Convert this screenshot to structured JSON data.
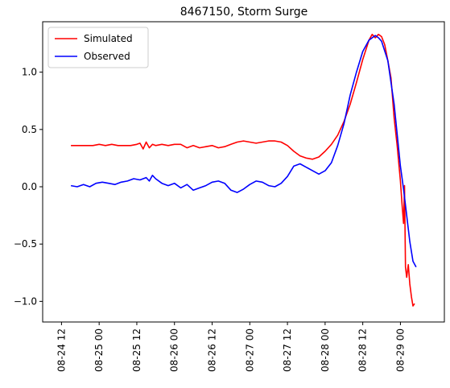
{
  "chart_data": {
    "type": "line",
    "title": "8467150, Storm Surge",
    "xlabel": "",
    "ylabel": "",
    "x_unit": "hours",
    "xlim_hours": [
      -6,
      122
    ],
    "ylim": [
      -1.18,
      1.44
    ],
    "grid": false,
    "legend_position": "top-left",
    "x_ticks": [
      {
        "label": "08-24 12",
        "hour": 0
      },
      {
        "label": "08-25 00",
        "hour": 12
      },
      {
        "label": "08-25 12",
        "hour": 24
      },
      {
        "label": "08-26 00",
        "hour": 36
      },
      {
        "label": "08-26 12",
        "hour": 48
      },
      {
        "label": "08-27 00",
        "hour": 60
      },
      {
        "label": "08-27 12",
        "hour": 72
      },
      {
        "label": "08-28 00",
        "hour": 84
      },
      {
        "label": "08-28 12",
        "hour": 96
      },
      {
        "label": "08-29 00",
        "hour": 108
      }
    ],
    "y_ticks": [
      {
        "label": "1.0",
        "value": 1.0
      },
      {
        "label": "0.5",
        "value": 0.5
      },
      {
        "label": "0.0",
        "value": 0.0
      },
      {
        "label": "−0.5",
        "value": -0.5
      },
      {
        "label": "−1.0",
        "value": -1.0
      }
    ],
    "series": [
      {
        "name": "Simulated",
        "color": "#ff0000",
        "points": [
          [
            3,
            0.36
          ],
          [
            6,
            0.36
          ],
          [
            9,
            0.36
          ],
          [
            10,
            0.36
          ],
          [
            12,
            0.37
          ],
          [
            14,
            0.36
          ],
          [
            16,
            0.37
          ],
          [
            18,
            0.36
          ],
          [
            20,
            0.36
          ],
          [
            22,
            0.36
          ],
          [
            24,
            0.37
          ],
          [
            25,
            0.38
          ],
          [
            26,
            0.33
          ],
          [
            27,
            0.39
          ],
          [
            28,
            0.34
          ],
          [
            29,
            0.37
          ],
          [
            30,
            0.36
          ],
          [
            32,
            0.37
          ],
          [
            34,
            0.36
          ],
          [
            36,
            0.37
          ],
          [
            38,
            0.37
          ],
          [
            40,
            0.34
          ],
          [
            42,
            0.36
          ],
          [
            44,
            0.34
          ],
          [
            46,
            0.35
          ],
          [
            48,
            0.36
          ],
          [
            50,
            0.34
          ],
          [
            52,
            0.35
          ],
          [
            54,
            0.37
          ],
          [
            56,
            0.39
          ],
          [
            58,
            0.4
          ],
          [
            60,
            0.39
          ],
          [
            62,
            0.38
          ],
          [
            64,
            0.39
          ],
          [
            66,
            0.4
          ],
          [
            68,
            0.4
          ],
          [
            70,
            0.39
          ],
          [
            72,
            0.36
          ],
          [
            74,
            0.31
          ],
          [
            76,
            0.27
          ],
          [
            78,
            0.25
          ],
          [
            80,
            0.24
          ],
          [
            82,
            0.26
          ],
          [
            84,
            0.31
          ],
          [
            86,
            0.37
          ],
          [
            88,
            0.45
          ],
          [
            90,
            0.57
          ],
          [
            92,
            0.72
          ],
          [
            94,
            0.91
          ],
          [
            96,
            1.11
          ],
          [
            98,
            1.28
          ],
          [
            99,
            1.33
          ],
          [
            100,
            1.3
          ],
          [
            101,
            1.33
          ],
          [
            102,
            1.31
          ],
          [
            103,
            1.24
          ],
          [
            104,
            1.1
          ],
          [
            105,
            0.95
          ],
          [
            106,
            0.6
          ],
          [
            107,
            0.35
          ],
          [
            108,
            0.05
          ],
          [
            108.5,
            -0.15
          ],
          [
            109,
            -0.32
          ],
          [
            109.3,
            0.01
          ],
          [
            109.6,
            -0.7
          ],
          [
            110,
            -0.79
          ],
          [
            110.5,
            -0.68
          ],
          [
            111,
            -0.85
          ],
          [
            111.5,
            -0.96
          ],
          [
            112,
            -1.04
          ],
          [
            112.5,
            -1.02
          ]
        ]
      },
      {
        "name": "Observed",
        "color": "#0000ff",
        "points": [
          [
            3,
            0.01
          ],
          [
            5,
            0.0
          ],
          [
            7,
            0.02
          ],
          [
            9,
            0.0
          ],
          [
            11,
            0.03
          ],
          [
            13,
            0.04
          ],
          [
            15,
            0.03
          ],
          [
            17,
            0.02
          ],
          [
            19,
            0.04
          ],
          [
            21,
            0.05
          ],
          [
            23,
            0.07
          ],
          [
            25,
            0.06
          ],
          [
            27,
            0.08
          ],
          [
            28,
            0.05
          ],
          [
            29,
            0.1
          ],
          [
            30,
            0.07
          ],
          [
            32,
            0.03
          ],
          [
            34,
            0.01
          ],
          [
            36,
            0.03
          ],
          [
            38,
            -0.01
          ],
          [
            40,
            0.02
          ],
          [
            42,
            -0.03
          ],
          [
            44,
            -0.01
          ],
          [
            46,
            0.01
          ],
          [
            48,
            0.04
          ],
          [
            50,
            0.05
          ],
          [
            52,
            0.03
          ],
          [
            54,
            -0.03
          ],
          [
            56,
            -0.05
          ],
          [
            58,
            -0.02
          ],
          [
            60,
            0.02
          ],
          [
            62,
            0.05
          ],
          [
            64,
            0.04
          ],
          [
            66,
            0.01
          ],
          [
            68,
            0.0
          ],
          [
            70,
            0.03
          ],
          [
            72,
            0.09
          ],
          [
            74,
            0.18
          ],
          [
            76,
            0.2
          ],
          [
            78,
            0.17
          ],
          [
            80,
            0.14
          ],
          [
            82,
            0.11
          ],
          [
            84,
            0.14
          ],
          [
            86,
            0.21
          ],
          [
            88,
            0.36
          ],
          [
            90,
            0.55
          ],
          [
            92,
            0.8
          ],
          [
            94,
            1.0
          ],
          [
            96,
            1.18
          ],
          [
            98,
            1.28
          ],
          [
            100,
            1.32
          ],
          [
            101,
            1.3
          ],
          [
            102,
            1.27
          ],
          [
            104,
            1.1
          ],
          [
            106,
            0.72
          ],
          [
            108,
            0.18
          ],
          [
            109,
            -0.02
          ],
          [
            110,
            -0.25
          ],
          [
            111,
            -0.48
          ],
          [
            112,
            -0.65
          ],
          [
            113,
            -0.7
          ]
        ]
      }
    ]
  }
}
